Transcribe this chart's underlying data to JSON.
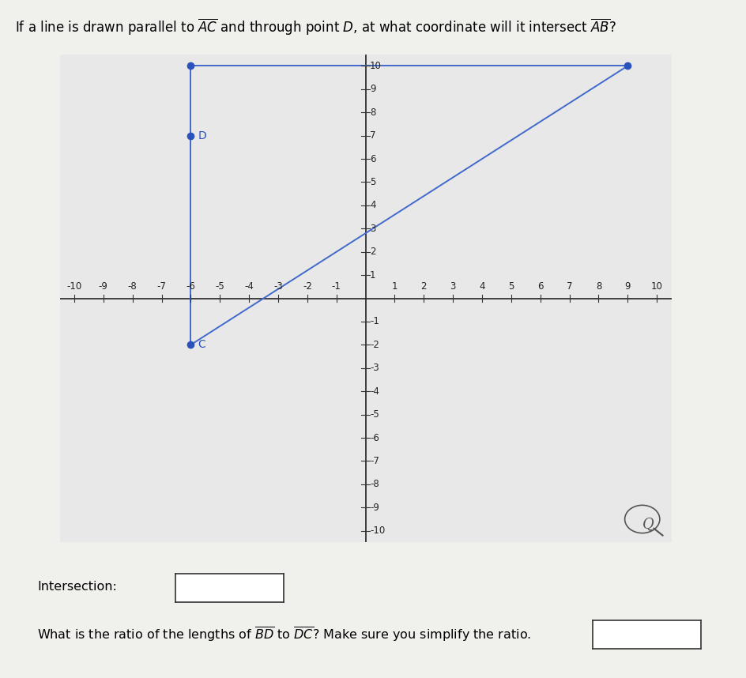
{
  "point_A": [
    -6,
    10
  ],
  "point_B": [
    9,
    10
  ],
  "point_C": [
    -6,
    -2
  ],
  "point_D": [
    -6,
    7
  ],
  "xlim": [
    -10.5,
    10.5
  ],
  "ylim": [
    -10.5,
    10.5
  ],
  "xticks": [
    -10,
    -9,
    -8,
    -7,
    -6,
    -5,
    -4,
    -3,
    -2,
    -1,
    1,
    2,
    3,
    4,
    5,
    6,
    7,
    8,
    9,
    10
  ],
  "yticks": [
    -10,
    -9,
    -8,
    -7,
    -6,
    -5,
    -4,
    -3,
    -2,
    -1,
    1,
    2,
    3,
    4,
    5,
    6,
    7,
    8,
    9,
    10
  ],
  "line_color": "#4169CD",
  "dot_color": "#2A52BE",
  "grid_color": "#aaaacc",
  "bg_color": "#e8e8e8",
  "fig_bg_color": "#f0f0ec",
  "label_fontsize": 8.5,
  "title_fontsize": 12
}
